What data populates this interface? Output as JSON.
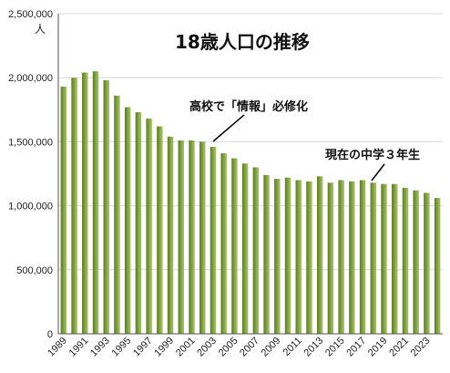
{
  "chart_data": {
    "type": "bar",
    "title": "18歳人口の推移",
    "y_unit": "人",
    "ylim": [
      0,
      2500000
    ],
    "y_ticks": [
      0,
      500000,
      1000000,
      1500000,
      2000000,
      2500000
    ],
    "y_tick_labels": [
      "0",
      "500,000",
      "1,000,000",
      "1,500,000",
      "2,000,000",
      "2,500,000"
    ],
    "grid": "horizontal",
    "bar_color": "#7fa03e",
    "categories": [
      "1989",
      "1990",
      "1991",
      "1992",
      "1993",
      "1994",
      "1995",
      "1996",
      "1997",
      "1998",
      "1999",
      "2000",
      "2001",
      "2002",
      "2003",
      "2004",
      "2005",
      "2006",
      "2007",
      "2008",
      "2009",
      "2010",
      "2011",
      "2012",
      "2013",
      "2014",
      "2015",
      "2016",
      "2017",
      "2018",
      "2019",
      "2020",
      "2021",
      "2022",
      "2023",
      "2024"
    ],
    "x_tick_labels_shown": [
      "1989",
      "1991",
      "1993",
      "1995",
      "1997",
      "1999",
      "2001",
      "2003",
      "2005",
      "2007",
      "2009",
      "2011",
      "2013",
      "2015",
      "2017",
      "2019",
      "2021",
      "2023"
    ],
    "values": [
      1930000,
      2000000,
      2040000,
      2050000,
      1980000,
      1860000,
      1770000,
      1730000,
      1680000,
      1620000,
      1540000,
      1510000,
      1510000,
      1500000,
      1460000,
      1410000,
      1370000,
      1330000,
      1300000,
      1240000,
      1210000,
      1220000,
      1200000,
      1190000,
      1230000,
      1180000,
      1200000,
      1190000,
      1200000,
      1180000,
      1170000,
      1170000,
      1140000,
      1120000,
      1100000,
      1060000
    ],
    "annotations": [
      {
        "text": "高校で「情報」必修化",
        "year": "2003"
      },
      {
        "text": "現在の中学３年生",
        "year": "2018"
      }
    ]
  }
}
